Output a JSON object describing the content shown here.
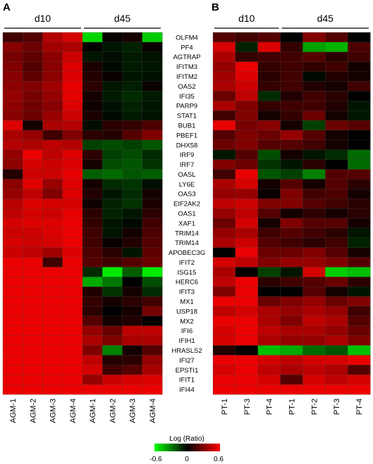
{
  "panels": [
    {
      "letter": "A"
    },
    {
      "letter": "B"
    }
  ],
  "colorbar": {
    "title": "Log (Ratio)",
    "ticks": [
      "-0.6",
      "0",
      "0.6"
    ],
    "range": [
      -0.6,
      0.6
    ],
    "colors": {
      "low": "#00ff00",
      "mid": "#000000",
      "high": "#ff0000"
    }
  },
  "chart_data": [
    {
      "type": "heatmap",
      "panel": "A",
      "groups": [
        {
          "label": "d10",
          "columns": [
            0,
            3
          ]
        },
        {
          "label": "d45",
          "columns": [
            4,
            7
          ]
        }
      ],
      "columns": [
        "AGM-1",
        "AGM-2",
        "AGM-3",
        "AGM-4",
        "AGM-1",
        "AGM-2",
        "AGM-3",
        "AGM-4"
      ],
      "rows": [
        "OLFM4",
        "PF4",
        "AGTRAP",
        "IFITM3",
        "IFITM2",
        "OAS2",
        "IFI35",
        "PARP9",
        "STAT1",
        "BUB1",
        "PBEF1",
        "DHX58",
        "IRF9",
        "IRF7",
        "OASL",
        "LY6E",
        "OAS3",
        "EIF2AK2",
        "OAS1",
        "XAF1",
        "TRIM14",
        "TRIM14",
        "APOBEC3G",
        "IFIT2",
        "ISG15",
        "HERC6",
        "IFIT3",
        "MX1",
        "USP18",
        "MX2",
        "IFI6",
        "IFIH1",
        "HRASLS2",
        "IFI27",
        "EPSTI1",
        "IFIT1",
        "IFI44"
      ],
      "values": [
        [
          0.15,
          0.2,
          0.42,
          0.5,
          -0.5,
          0.02,
          0.05,
          -0.48
        ],
        [
          0.32,
          0.25,
          0.38,
          0.4,
          0.0,
          -0.05,
          -0.08,
          0.02
        ],
        [
          0.28,
          0.22,
          0.33,
          0.48,
          -0.05,
          -0.03,
          -0.06,
          -0.04
        ],
        [
          0.3,
          0.2,
          0.32,
          0.52,
          0.06,
          -0.02,
          -0.06,
          -0.05
        ],
        [
          0.32,
          0.22,
          0.33,
          0.52,
          0.08,
          0.02,
          -0.05,
          -0.04
        ],
        [
          0.33,
          0.3,
          0.38,
          0.54,
          0.1,
          -0.05,
          -0.07,
          0.02
        ],
        [
          0.35,
          0.28,
          0.35,
          0.54,
          0.05,
          -0.06,
          -0.1,
          -0.06
        ],
        [
          0.34,
          0.27,
          0.32,
          0.52,
          0.03,
          -0.04,
          -0.08,
          -0.05
        ],
        [
          0.32,
          0.25,
          0.36,
          0.48,
          0.06,
          -0.02,
          -0.06,
          -0.04
        ],
        [
          0.52,
          0.05,
          0.4,
          0.42,
          -0.03,
          0.1,
          0.12,
          0.18
        ],
        [
          0.4,
          0.35,
          0.15,
          0.3,
          0.1,
          0.08,
          0.2,
          0.3
        ],
        [
          0.42,
          0.4,
          0.45,
          0.42,
          -0.15,
          -0.18,
          -0.15,
          -0.2
        ],
        [
          0.35,
          0.55,
          0.45,
          0.52,
          0.1,
          -0.15,
          -0.18,
          -0.1
        ],
        [
          0.33,
          0.5,
          0.48,
          0.52,
          0.05,
          -0.18,
          -0.2,
          -0.12
        ],
        [
          0.08,
          0.48,
          0.48,
          0.54,
          -0.22,
          -0.25,
          -0.2,
          -0.22
        ],
        [
          0.33,
          0.53,
          0.36,
          0.52,
          0.05,
          -0.1,
          -0.12,
          -0.03
        ],
        [
          0.35,
          0.45,
          0.3,
          0.52,
          0.08,
          -0.05,
          -0.1,
          0.05
        ],
        [
          0.43,
          0.52,
          0.5,
          0.5,
          0.03,
          -0.08,
          -0.12,
          0.06
        ],
        [
          0.45,
          0.5,
          0.48,
          0.54,
          0.1,
          -0.08,
          -0.05,
          0.1
        ],
        [
          0.5,
          0.52,
          0.52,
          0.55,
          0.12,
          -0.05,
          -0.02,
          0.15
        ],
        [
          0.48,
          0.48,
          0.52,
          0.55,
          0.15,
          -0.05,
          0.05,
          0.18
        ],
        [
          0.5,
          0.48,
          0.5,
          0.55,
          0.15,
          0.02,
          0.08,
          0.2
        ],
        [
          0.48,
          0.45,
          0.38,
          0.52,
          0.18,
          0.1,
          -0.05,
          0.22
        ],
        [
          0.55,
          0.55,
          0.15,
          0.55,
          0.2,
          0.15,
          0.2,
          0.25
        ],
        [
          0.55,
          0.55,
          0.55,
          0.55,
          -0.1,
          -0.55,
          -0.22,
          -0.55
        ],
        [
          0.55,
          0.55,
          0.55,
          0.55,
          -0.4,
          -0.28,
          0.0,
          -0.18
        ],
        [
          0.55,
          0.55,
          0.55,
          0.55,
          0.08,
          -0.12,
          0.05,
          -0.1
        ],
        [
          0.55,
          0.55,
          0.55,
          0.55,
          0.12,
          0.05,
          0.1,
          0.15
        ],
        [
          0.55,
          0.55,
          0.55,
          0.55,
          0.1,
          0.0,
          0.05,
          0.28
        ],
        [
          0.55,
          0.55,
          0.55,
          0.55,
          0.2,
          0.05,
          0.08,
          0.0
        ],
        [
          0.55,
          0.55,
          0.55,
          0.55,
          0.35,
          0.25,
          0.45,
          0.45
        ],
        [
          0.55,
          0.55,
          0.55,
          0.55,
          0.4,
          0.3,
          0.4,
          0.4
        ],
        [
          0.55,
          0.55,
          0.55,
          0.55,
          0.3,
          -0.3,
          0.05,
          0.2
        ],
        [
          0.55,
          0.55,
          0.55,
          0.55,
          0.45,
          0.08,
          0.1,
          0.35
        ],
        [
          0.55,
          0.55,
          0.55,
          0.55,
          0.5,
          0.15,
          0.2,
          0.4
        ],
        [
          0.55,
          0.55,
          0.55,
          0.55,
          0.35,
          0.48,
          0.5,
          0.52
        ],
        [
          0.55,
          0.55,
          0.55,
          0.55,
          0.55,
          0.55,
          0.55,
          0.55
        ]
      ]
    },
    {
      "type": "heatmap",
      "panel": "B",
      "groups": [
        {
          "label": "d10",
          "columns": [
            0,
            2
          ]
        },
        {
          "label": "d45",
          "columns": [
            3,
            6
          ]
        }
      ],
      "columns": [
        "PT-1",
        "PT-3",
        "PT-4",
        "PT-1",
        "PT-2",
        "PT-3",
        "PT-4"
      ],
      "values": [
        [
          0.2,
          0.15,
          0.2,
          0.0,
          0.3,
          0.2,
          0.0
        ],
        [
          0.5,
          -0.08,
          0.52,
          0.12,
          -0.38,
          -0.42,
          0.18
        ],
        [
          0.4,
          0.12,
          0.15,
          0.15,
          0.2,
          0.1,
          0.15
        ],
        [
          0.35,
          0.55,
          0.12,
          0.15,
          0.12,
          0.15,
          0.05
        ],
        [
          0.38,
          0.52,
          0.1,
          0.15,
          -0.02,
          0.08,
          0.05
        ],
        [
          0.4,
          0.48,
          0.12,
          0.15,
          0.08,
          0.05,
          0.15
        ],
        [
          0.25,
          0.45,
          -0.1,
          0.08,
          0.15,
          0.1,
          0.0
        ],
        [
          0.4,
          0.3,
          0.12,
          0.15,
          0.15,
          0.08,
          -0.05
        ],
        [
          0.15,
          0.3,
          0.05,
          0.12,
          0.25,
          0.05,
          -0.05
        ],
        [
          0.55,
          0.28,
          0.32,
          0.05,
          -0.15,
          0.25,
          0.2
        ],
        [
          0.2,
          0.3,
          0.25,
          0.35,
          0.2,
          0.05,
          0.0
        ],
        [
          0.25,
          0.3,
          0.2,
          0.2,
          0.15,
          0.05,
          0.0
        ],
        [
          -0.05,
          0.2,
          -0.18,
          0.05,
          -0.05,
          -0.1,
          -0.25
        ],
        [
          0.3,
          0.25,
          -0.12,
          -0.05,
          0.1,
          0.0,
          -0.25
        ],
        [
          0.15,
          0.55,
          -0.2,
          -0.15,
          -0.3,
          0.2,
          0.2
        ],
        [
          0.4,
          0.5,
          0.05,
          0.2,
          0.05,
          0.2,
          0.1
        ],
        [
          0.35,
          0.35,
          0.02,
          0.3,
          0.15,
          0.18,
          0.05
        ],
        [
          0.45,
          0.48,
          0.3,
          0.3,
          0.2,
          0.15,
          0.1
        ],
        [
          0.35,
          0.45,
          0.2,
          0.05,
          0.1,
          0.05,
          0.1
        ],
        [
          0.25,
          0.5,
          0.05,
          0.3,
          0.2,
          0.2,
          0.05
        ],
        [
          0.35,
          0.4,
          0.15,
          0.2,
          0.15,
          0.1,
          -0.05
        ],
        [
          0.4,
          0.48,
          0.2,
          0.15,
          0.1,
          0.15,
          -0.08
        ],
        [
          0.0,
          0.55,
          0.25,
          0.25,
          0.3,
          0.2,
          0.05
        ],
        [
          0.5,
          0.45,
          0.3,
          0.35,
          0.35,
          0.3,
          0.2
        ],
        [
          0.4,
          0.0,
          -0.15,
          -0.05,
          0.5,
          -0.48,
          -0.45
        ],
        [
          0.45,
          0.55,
          0.1,
          0.15,
          0.2,
          0.25,
          0.1
        ],
        [
          0.3,
          0.55,
          0.0,
          0.0,
          0.2,
          0.05,
          -0.05
        ],
        [
          0.55,
          0.55,
          0.25,
          0.3,
          0.35,
          0.25,
          0.3
        ],
        [
          0.45,
          0.5,
          0.4,
          0.35,
          0.4,
          0.35,
          0.15
        ],
        [
          0.55,
          0.55,
          0.4,
          0.3,
          0.45,
          0.4,
          0.2
        ],
        [
          0.5,
          0.55,
          0.45,
          0.4,
          0.4,
          0.35,
          0.25
        ],
        [
          0.5,
          0.55,
          0.4,
          0.35,
          0.35,
          0.4,
          0.3
        ],
        [
          0.08,
          0.0,
          -0.45,
          -0.4,
          -0.25,
          -0.2,
          -0.45
        ],
        [
          0.55,
          0.55,
          0.5,
          0.45,
          0.5,
          0.5,
          0.55
        ],
        [
          0.5,
          0.55,
          0.45,
          0.4,
          0.45,
          0.4,
          0.2
        ],
        [
          0.55,
          0.55,
          0.5,
          0.2,
          0.5,
          0.45,
          0.5
        ],
        [
          0.55,
          0.55,
          0.55,
          0.55,
          0.55,
          0.55,
          0.55
        ]
      ]
    }
  ]
}
